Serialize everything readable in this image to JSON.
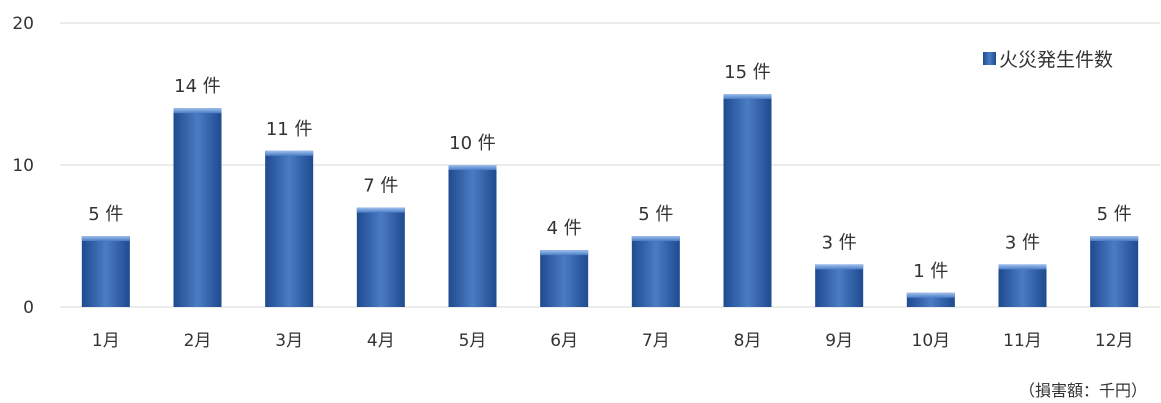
{
  "chart_data": {
    "type": "bar",
    "categories": [
      "1月",
      "2月",
      "3月",
      "4月",
      "5月",
      "6月",
      "7月",
      "8月",
      "9月",
      "10月",
      "11月",
      "12月"
    ],
    "series": [
      {
        "name": "火災発生件数",
        "values": [
          5,
          14,
          11,
          7,
          10,
          4,
          5,
          15,
          3,
          1,
          3,
          5
        ]
      }
    ],
    "data_labels": [
      "5 件",
      "14 件",
      "11 件",
      "7 件",
      "10 件",
      "4 件",
      "5 件",
      "15 件",
      "3 件",
      "1 件",
      "3 件",
      "5 件"
    ],
    "yticks": [
      "0",
      "10",
      "20"
    ],
    "ylim": [
      0,
      20
    ],
    "grid": true,
    "legend_position": "top-right",
    "colors": {
      "bar": "#3a6bb6",
      "bar_dark": "#1f4a8f",
      "bar_light": "#7fa6e0",
      "grid": "#d9d9d9"
    }
  },
  "footnote": "（損害額：千円）"
}
